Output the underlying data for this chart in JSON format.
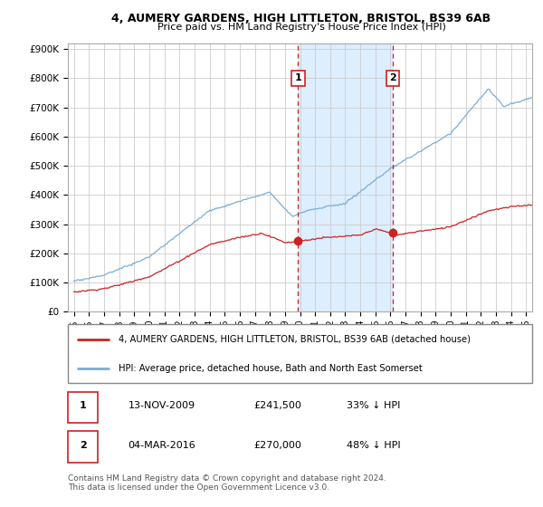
{
  "title1": "4, AUMERY GARDENS, HIGH LITTLETON, BRISTOL, BS39 6AB",
  "title2": "Price paid vs. HM Land Registry's House Price Index (HPI)",
  "ylabel_ticks": [
    "£0",
    "£100K",
    "£200K",
    "£300K",
    "£400K",
    "£500K",
    "£600K",
    "£700K",
    "£800K",
    "£900K"
  ],
  "ytick_values": [
    0,
    100000,
    200000,
    300000,
    400000,
    500000,
    600000,
    700000,
    800000,
    900000
  ],
  "ylim": [
    0,
    920000
  ],
  "xlim_start": 1994.6,
  "xlim_end": 2025.4,
  "hpi_color": "#7aadd4",
  "price_color": "#cc2222",
  "sale1_date": 2009.87,
  "sale1_price": 241500,
  "sale2_date": 2016.17,
  "sale2_price": 270000,
  "sale1_label": "1",
  "sale2_label": "2",
  "vline_color": "#cc2222",
  "shade_color": "#ddeeff",
  "legend_line1": "4, AUMERY GARDENS, HIGH LITTLETON, BRISTOL, BS39 6AB (detached house)",
  "legend_line2": "HPI: Average price, detached house, Bath and North East Somerset",
  "table_row1": [
    "1",
    "13-NOV-2009",
    "£241,500",
    "33% ↓ HPI"
  ],
  "table_row2": [
    "2",
    "04-MAR-2016",
    "£270,000",
    "48% ↓ HPI"
  ],
  "footnote": "Contains HM Land Registry data © Crown copyright and database right 2024.\nThis data is licensed under the Open Government Licence v3.0.",
  "background_color": "#ffffff",
  "grid_color": "#cccccc"
}
